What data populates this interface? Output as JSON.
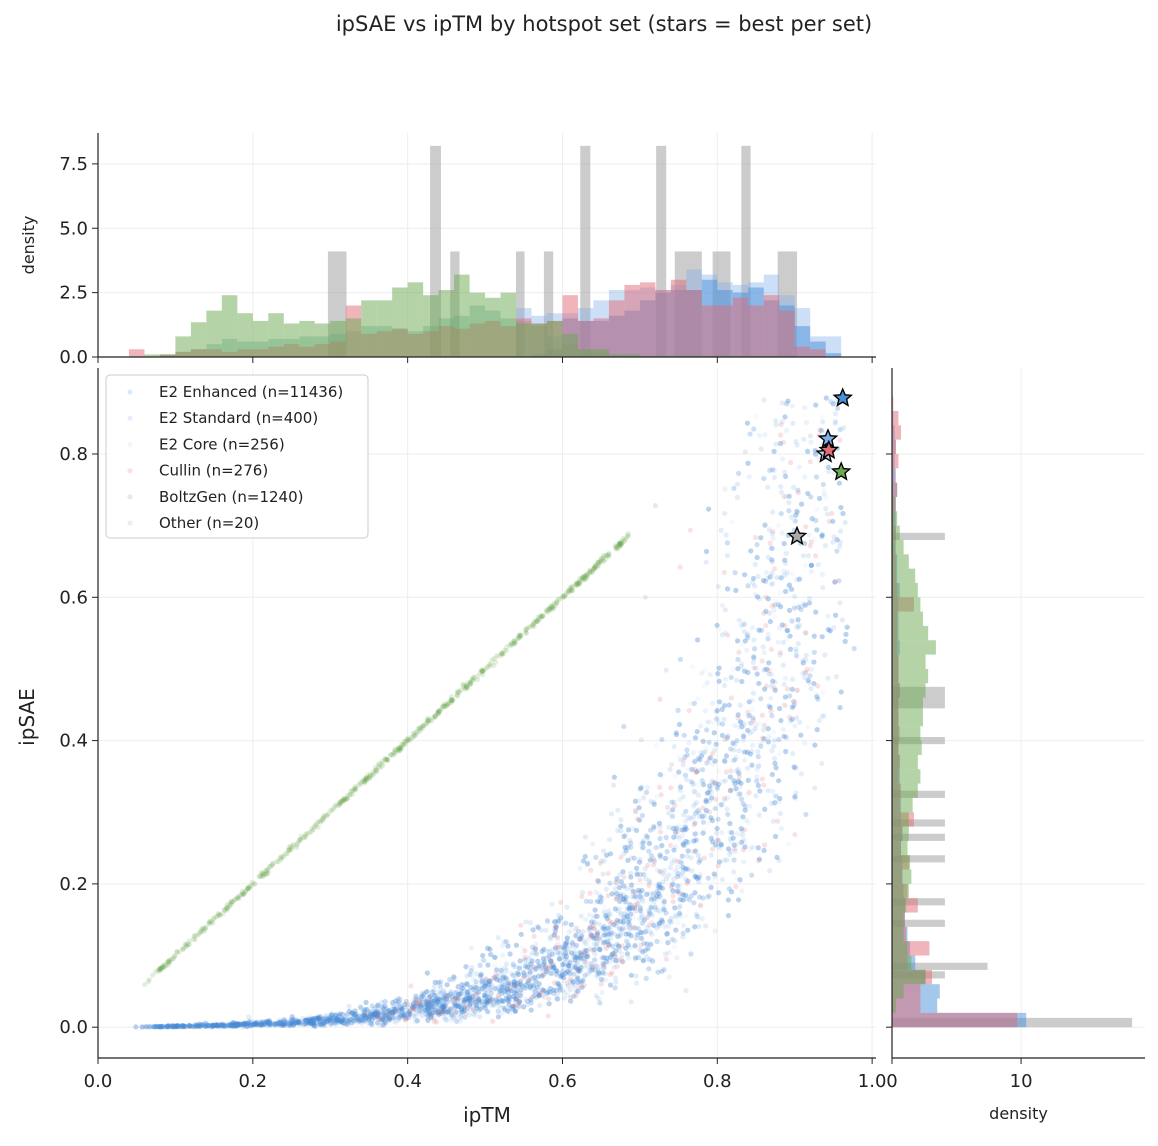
{
  "chart_data": {
    "type": "scatter",
    "title": "ipSAE vs ipTM by hotspot set (stars = best per set)",
    "xlabel": "ipTM",
    "ylabel": "ipSAE",
    "xlim": [
      0,
      1.005
    ],
    "ylim": [
      -0.043,
      0.92
    ],
    "xticks": [
      "0.0",
      "0.2",
      "0.4",
      "0.6",
      "0.8",
      "1.0"
    ],
    "yticks": [
      "0.0",
      "0.2",
      "0.4",
      "0.6",
      "0.8"
    ],
    "grid": true,
    "legend_placement": "upper-left",
    "series": [
      {
        "name": "E2 Enhanced (n=11436)",
        "color": "#4a90d9",
        "trend": [
          [
            0.1,
            0.0
          ],
          [
            0.3,
            0.003
          ],
          [
            0.4,
            0.011
          ],
          [
            0.5,
            0.04
          ],
          [
            0.6,
            0.08
          ],
          [
            0.7,
            0.17
          ],
          [
            0.8,
            0.4
          ],
          [
            0.87,
            0.62
          ],
          [
            0.93,
            0.8
          ]
        ],
        "best": [
          0.962,
          0.878
        ]
      },
      {
        "name": "E2 Standard (n=400)",
        "color": "#7fb0e8",
        "trend": [
          [
            0.3,
            0.003
          ],
          [
            0.6,
            0.08
          ],
          [
            0.8,
            0.4
          ],
          [
            0.93,
            0.8
          ]
        ],
        "best": [
          0.943,
          0.821
        ]
      },
      {
        "name": "E2 Core (n=256)",
        "color": "#b8d0ee",
        "trend": [
          [
            0.3,
            0.003
          ],
          [
            0.6,
            0.08
          ],
          [
            0.8,
            0.4
          ],
          [
            0.92,
            0.78
          ]
        ],
        "best": [
          0.94,
          0.8
        ]
      },
      {
        "name": "Cullin (n=276)",
        "color": "#e06c75",
        "trend": [
          [
            0.4,
            0.012
          ],
          [
            0.6,
            0.09
          ],
          [
            0.75,
            0.26
          ],
          [
            0.9,
            0.65
          ]
        ],
        "best": [
          0.944,
          0.805
        ]
      },
      {
        "name": "BoltzGen (n=1240)",
        "color": "#6aa84f",
        "trend": [
          [
            0.06,
            0.06
          ],
          [
            0.3,
            0.3
          ],
          [
            0.5,
            0.5
          ],
          [
            0.685,
            0.685
          ]
        ],
        "best": [
          0.96,
          0.775
        ]
      },
      {
        "name": "Other (n=20)",
        "color": "#aaaaaa",
        "trend": [
          [
            0.3,
            0.005
          ],
          [
            0.6,
            0.07
          ],
          [
            0.8,
            0.35
          ]
        ],
        "best": [
          0.903,
          0.685
        ]
      }
    ],
    "top_hist": {
      "ylabel": "density",
      "yticks": [
        "0.0",
        "2.5",
        "5.0",
        "7.5"
      ],
      "ylim": [
        0,
        8.7
      ],
      "bin_width": 0.02,
      "densities": {
        "E2 Enhanced": [
          0,
          0,
          0,
          0,
          0,
          0,
          0,
          0,
          0,
          0,
          0,
          0,
          0,
          0,
          0,
          0,
          0,
          0,
          0,
          0,
          0,
          0,
          0,
          0,
          0,
          0,
          0,
          0,
          0.1,
          0.3,
          1.5,
          1.4,
          1.4,
          1.6,
          1.8,
          2.2,
          2.5,
          2.6,
          2.6,
          3.0,
          2.6,
          2.5,
          2.7,
          2.2,
          2.0,
          1.2,
          0.6,
          0.15,
          0,
          0
        ],
        "E2 Standard": [
          0,
          0,
          0,
          0,
          0,
          0,
          0,
          0,
          0,
          0,
          0,
          0,
          0,
          0,
          0,
          0,
          0,
          0,
          0,
          0,
          0,
          0,
          0,
          0,
          0,
          0,
          0,
          1.9,
          1.6,
          1.7,
          1.7,
          1.9,
          2.2,
          2.6,
          2.6,
          2.7,
          2.6,
          2.8,
          3.4,
          3.2,
          2.9,
          2.8,
          2.9,
          3.2,
          2.4,
          1.9,
          0.8,
          0.8,
          0,
          0
        ],
        "E2 Core": [
          0,
          0,
          0,
          0,
          0.1,
          0.2,
          0.3,
          0.5,
          0.7,
          0.6,
          0.6,
          0.7,
          0.7,
          0.8,
          0.8,
          0.9,
          1.0,
          1.2,
          1.2,
          1.1,
          1.0,
          1.2,
          1.5,
          1.6,
          2.0,
          1.8,
          1.5,
          1.4,
          1.2,
          0.8,
          0.5,
          0.3,
          0.2,
          0.1,
          0,
          0,
          0,
          0,
          0,
          0,
          0,
          0,
          0,
          0,
          0,
          0,
          0,
          0,
          0,
          0
        ],
        "Cullin": [
          0,
          0,
          0.3,
          0,
          0.1,
          0.2,
          0.3,
          0.3,
          0.2,
          0.3,
          0.3,
          0.4,
          0.5,
          0.4,
          0.5,
          0.6,
          2.0,
          0.9,
          1.0,
          1.1,
          0.9,
          1.0,
          1.2,
          1.1,
          1.3,
          1.4,
          1.2,
          1.5,
          1.3,
          1.4,
          2.4,
          1.4,
          1.5,
          2.2,
          2.8,
          2.9,
          2.6,
          3.0,
          2.6,
          2.0,
          2.0,
          2.3,
          2.0,
          2.4,
          1.8,
          0.4,
          0.3,
          0,
          0,
          0
        ],
        "BoltzGen": [
          0,
          0,
          0,
          0.1,
          0.1,
          0.8,
          1.35,
          1.8,
          2.4,
          1.7,
          1.4,
          1.7,
          1.3,
          1.4,
          1.3,
          1.4,
          1.5,
          2.2,
          2.2,
          2.7,
          2.9,
          2.4,
          2.6,
          3.2,
          2.5,
          2.3,
          2.5,
          1.3,
          1.3,
          1.4,
          0.9,
          0.3,
          0.3,
          0.1,
          0.1,
          0.05,
          0.05,
          0.05,
          0.05,
          0.05,
          0.05,
          0.05,
          0.05,
          0.05,
          0.05,
          0,
          0,
          0,
          0,
          0
        ]
      },
      "other_bars": [
        [
          0.297,
          0.321,
          4.1
        ],
        [
          0.429,
          0.443,
          8.2
        ],
        [
          0.455,
          0.467,
          4.1
        ],
        [
          0.54,
          0.551,
          4.1
        ],
        [
          0.576,
          0.588,
          4.1
        ],
        [
          0.623,
          0.636,
          8.2
        ],
        [
          0.721,
          0.734,
          8.2
        ],
        [
          0.745,
          0.78,
          4.1
        ],
        [
          0.794,
          0.817,
          4.1
        ],
        [
          0.831,
          0.843,
          8.2
        ],
        [
          0.878,
          0.903,
          4.1
        ]
      ]
    },
    "right_hist": {
      "xlabel": "density",
      "xticks": [
        "0",
        "10"
      ],
      "xlim": [
        0,
        19.6
      ],
      "bin_width": 0.02,
      "densities": {
        "E2 Enhanced": [
          10.4,
          3.5,
          3.7,
          2.6,
          1.8,
          1.4,
          1.2,
          1.0,
          1.0,
          0.9,
          0.8,
          0.8,
          0.7,
          0.8,
          0.7,
          0.7,
          0.6,
          0.6,
          0.6,
          0.5,
          0.5,
          0.5,
          0.5,
          0.6,
          0.5,
          0.5,
          0.6,
          0.5,
          0.5,
          0.5,
          0.6,
          0.4,
          0.4,
          0.3,
          0.3,
          0.3,
          0.3,
          0.4,
          0.3,
          0.2,
          0.3,
          0.2,
          0.1,
          0,
          0
        ],
        "Cullin": [
          9.7,
          2.2,
          2.2,
          3.1,
          1.2,
          2.9,
          1.1,
          1.0,
          2.0,
          1.2,
          0.8,
          1.3,
          0.7,
          0.8,
          1.7,
          0.6,
          0.7,
          0.5,
          0.6,
          0.5,
          0.6,
          0.5,
          0.5,
          0.6,
          0.5,
          0.5,
          0.4,
          0.4,
          0.4,
          1.7,
          0.4,
          0.3,
          0.3,
          0.2,
          0.3,
          0.2,
          0.3,
          0.4,
          0.2,
          0.5,
          0.3,
          0.7,
          0.5,
          0.1,
          0
        ],
        "BoltzGen": [
          0,
          0.3,
          0.9,
          2.6,
          1.5,
          1.2,
          0.9,
          0.9,
          1.1,
          1.3,
          1.5,
          1.4,
          1.2,
          1.3,
          1.3,
          1.6,
          2.0,
          2.2,
          2.0,
          2.3,
          2.2,
          2.4,
          2.4,
          2.6,
          2.8,
          2.6,
          3.4,
          2.8,
          2.4,
          2.2,
          2.0,
          1.8,
          1.3,
          0.9,
          0.6,
          0.4,
          0.2,
          0.1,
          0,
          0,
          0,
          0,
          0,
          0,
          0
        ]
      },
      "other_bars": [
        [
          0.0,
          0.013,
          18.6
        ],
        [
          0.068,
          0.078,
          4.1
        ],
        [
          0.08,
          0.09,
          7.4
        ],
        [
          0.14,
          0.15,
          4.1
        ],
        [
          0.17,
          0.18,
          4.1
        ],
        [
          0.23,
          0.24,
          4.1
        ],
        [
          0.26,
          0.27,
          4.1
        ],
        [
          0.28,
          0.29,
          4.1
        ],
        [
          0.32,
          0.33,
          4.1
        ],
        [
          0.395,
          0.405,
          4.1
        ],
        [
          0.445,
          0.475,
          4.1
        ],
        [
          0.68,
          0.69,
          4.1
        ]
      ]
    }
  }
}
